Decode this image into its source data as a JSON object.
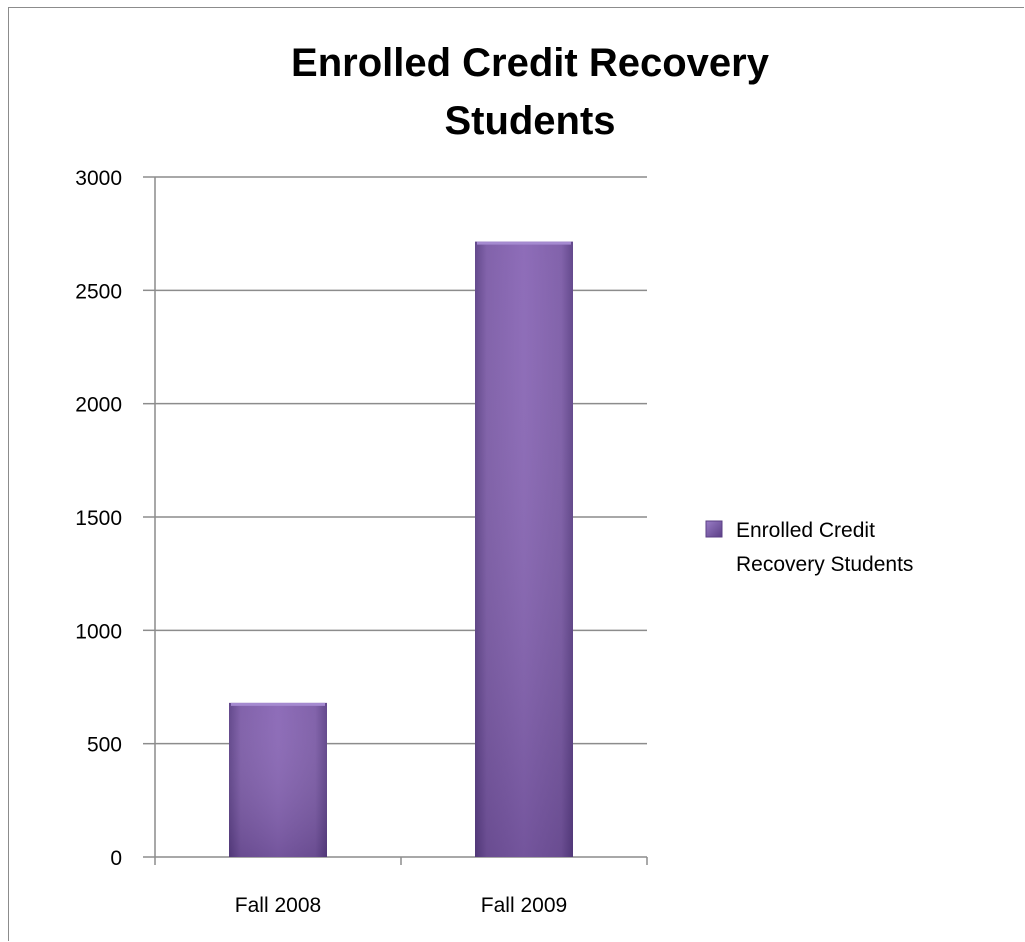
{
  "chart_data": {
    "type": "bar",
    "title": "Enrolled Credit Recovery Students",
    "title_lines": [
      "Enrolled Credit Recovery",
      "Students"
    ],
    "categories": [
      "Fall 2008",
      "Fall 2009"
    ],
    "series": [
      {
        "name": "Enrolled Credit Recovery Students",
        "values": [
          680,
          2715
        ],
        "color": "#7b5aa6"
      }
    ],
    "legend_lines": [
      "Enrolled Credit",
      "Recovery Students"
    ],
    "xlabel": "",
    "ylabel": "",
    "ylim": [
      0,
      3000
    ],
    "yticks": [
      0,
      500,
      1000,
      1500,
      2000,
      2500,
      3000
    ],
    "grid": true,
    "legend_position": "right"
  }
}
